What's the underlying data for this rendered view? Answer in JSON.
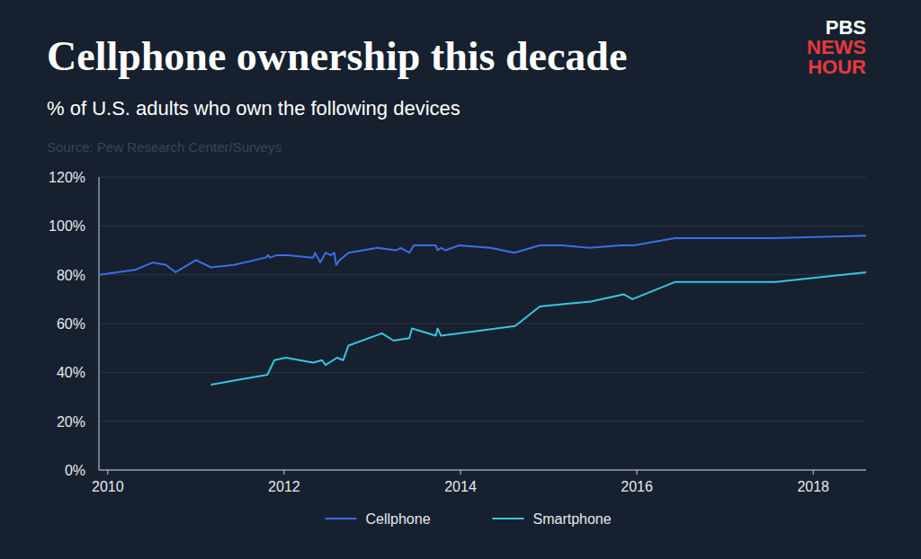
{
  "chart_data": {
    "type": "line",
    "title": "Cellphone ownership this decade",
    "subtitle": "% of U.S. adults who own the following devices",
    "source": "Source: Pew Research Center/Surveys",
    "logo": [
      "PBS",
      "NEWS",
      "HOUR"
    ],
    "xlim": [
      2009.9,
      2018.6
    ],
    "xticks": [
      2010,
      2012,
      2014,
      2016,
      2018
    ],
    "ylim": [
      0,
      120
    ],
    "yticks": [
      {
        "value": 0,
        "label": "0%"
      },
      {
        "value": 20,
        "label": "20%"
      },
      {
        "value": 40,
        "label": "40%"
      },
      {
        "value": 60,
        "label": "60%"
      },
      {
        "value": 80,
        "label": "80%"
      },
      {
        "value": 100,
        "label": "100%"
      },
      {
        "value": 120,
        "label": "120%"
      }
    ],
    "grid": true,
    "legend": "bottom",
    "series": [
      {
        "name": "Cellphone",
        "color": "#3b6ee6",
        "x": [
          2009.9,
          2010.31,
          2010.51,
          2010.66,
          2010.77,
          2011.0,
          2011.17,
          2011.43,
          2011.79,
          2011.82,
          2011.84,
          2011.92,
          2012.04,
          2012.33,
          2012.35,
          2012.41,
          2012.47,
          2012.53,
          2012.57,
          2012.59,
          2012.63,
          2012.73,
          2013.06,
          2013.27,
          2013.32,
          2013.42,
          2013.47,
          2013.72,
          2013.74,
          2013.78,
          2013.83,
          2013.98,
          2014.34,
          2014.61,
          2014.9,
          2015.15,
          2015.46,
          2015.82,
          2015.97,
          2016.43,
          2017.55,
          2018.6
        ],
        "values": [
          80,
          82,
          85,
          84,
          81,
          86,
          83,
          84,
          87,
          88,
          87,
          88,
          88,
          87,
          89,
          85,
          89,
          88,
          89,
          84,
          86,
          89,
          91,
          90,
          91,
          89,
          92,
          92,
          90,
          91,
          90,
          92,
          91,
          89,
          92,
          92,
          91,
          92,
          92,
          95,
          95,
          96
        ]
      },
      {
        "name": "Smartphone",
        "color": "#36c6e2",
        "x": [
          2011.17,
          2011.81,
          2011.89,
          2012.02,
          2012.33,
          2012.43,
          2012.47,
          2012.6,
          2012.67,
          2012.73,
          2013.11,
          2013.24,
          2013.42,
          2013.45,
          2013.72,
          2013.74,
          2013.78,
          2014.62,
          2014.9,
          2015.18,
          2015.48,
          2015.85,
          2015.95,
          2016.43,
          2017.57,
          2018.6
        ],
        "values": [
          35,
          39,
          45,
          46,
          44,
          45,
          43,
          46,
          45,
          51,
          56,
          53,
          54,
          58,
          55,
          58,
          55,
          59,
          67,
          68,
          69,
          72,
          70,
          77,
          77,
          81
        ]
      }
    ]
  }
}
